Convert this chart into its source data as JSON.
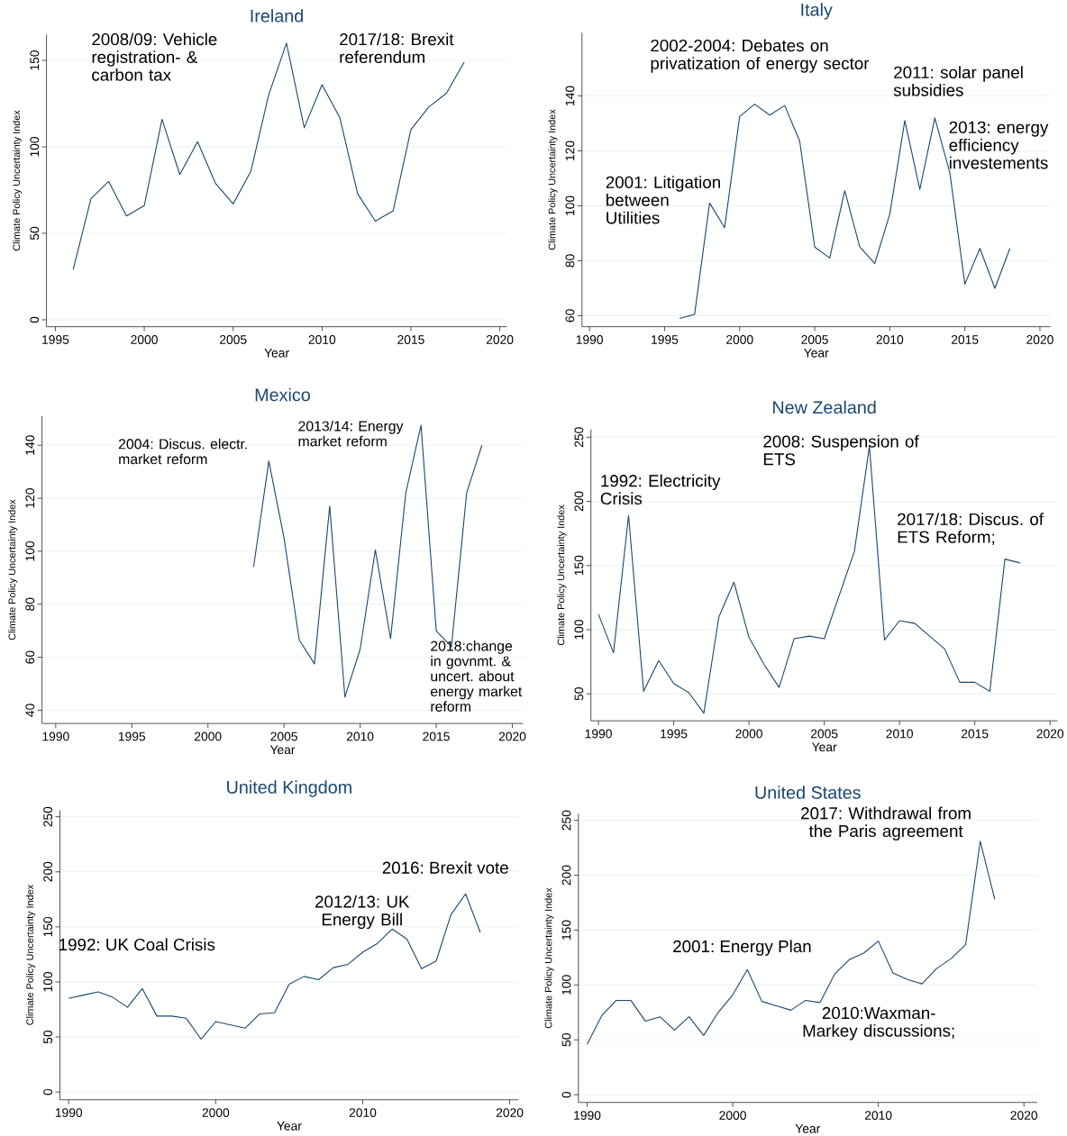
{
  "chart_data": [
    {
      "type": "line",
      "title": "Ireland",
      "xlabel": "Year",
      "ylabel": "Climate Policy Uncertainty Index",
      "color": "#1a476f",
      "grid": "y",
      "x": [
        1996,
        1997,
        1998,
        1999,
        2000,
        2001,
        2002,
        2003,
        2004,
        2005,
        2006,
        2007,
        2008,
        2009,
        2010,
        2011,
        2012,
        2013,
        2014,
        2015,
        2016,
        2017,
        2018
      ],
      "values": [
        29,
        70,
        80,
        60,
        66,
        116,
        84,
        103,
        79,
        67,
        86,
        130,
        160,
        111,
        136,
        117,
        73,
        57,
        63,
        110,
        123,
        131,
        149
      ],
      "xlim": [
        1994.5,
        2020.4
      ],
      "xticks": [
        1995,
        2000,
        2005,
        2010,
        2015,
        2020
      ],
      "ylim": [
        -4,
        165
      ],
      "yticks": [
        0,
        50,
        100,
        150
      ],
      "annotations": [
        "2008/09: Vehicle registration- & carbon tax",
        "2017/18: Brexit referendum"
      ]
    },
    {
      "type": "line",
      "title": "Italy",
      "xlabel": "Year",
      "ylabel": "Climate Policy Uncertainty Index",
      "color": "#1a476f",
      "grid": "y",
      "x": [
        1996,
        1997,
        1998,
        1999,
        2000,
        2001,
        2002,
        2003,
        2004,
        2005,
        2006,
        2007,
        2008,
        2009,
        2010,
        2011,
        2012,
        2013,
        2014,
        2015,
        2016,
        2017,
        2018
      ],
      "values": [
        59,
        60.5,
        101,
        92,
        132.5,
        137,
        133,
        136.5,
        123.5,
        85,
        81,
        105.5,
        85,
        79,
        97,
        131,
        106,
        132,
        112,
        71.5,
        84.5,
        70,
        84.5
      ],
      "xlim": [
        1989.5,
        2020.7
      ],
      "xticks": [
        1990,
        1995,
        2000,
        2005,
        2010,
        2015,
        2020
      ],
      "ylim": [
        56,
        163
      ],
      "yticks": [
        60,
        80,
        100,
        120,
        140
      ],
      "annotations": [
        "2002-2004: Debates on privatization of energy sector",
        "2011: solar panel subsidies",
        "2013: energy efficiency investements",
        "2001: Litigation between Utilities"
      ]
    },
    {
      "type": "line",
      "title": "Mexico",
      "xlabel": "Year",
      "ylabel": "Climate Policy Uncertainty Index",
      "color": "#1a476f",
      "grid": "y",
      "x": [
        2003,
        2004,
        2005,
        2006,
        2007,
        2008,
        2009,
        2010,
        2011,
        2012,
        2013,
        2014,
        2015,
        2016,
        2017,
        2018
      ],
      "values": [
        94,
        134,
        105,
        66.5,
        57.5,
        117,
        45,
        63,
        100.5,
        67,
        122,
        147.5,
        70,
        64,
        122,
        140
      ],
      "xlim": [
        1989.1,
        2020.7
      ],
      "xticks": [
        1990,
        1995,
        2000,
        2005,
        2010,
        2015,
        2020
      ],
      "ylim": [
        35,
        151
      ],
      "yticks": [
        40,
        60,
        80,
        100,
        120,
        140
      ],
      "annotations": [
        "2004: Discus. electr. market reform",
        "2013/14: Energy market reform",
        "2018:change in govnmt. & uncert. about energy market reform"
      ]
    },
    {
      "type": "line",
      "title": "New Zealand",
      "xlabel": "Year",
      "ylabel": "Climate Policy Uncertainty Index",
      "color": "#1a476f",
      "grid": "y",
      "x": [
        1990,
        1991,
        1992,
        1993,
        1994,
        1995,
        1996,
        1997,
        1998,
        1999,
        2000,
        2001,
        2002,
        2003,
        2004,
        2005,
        2006,
        2007,
        2008,
        2009,
        2010,
        2011,
        2012,
        2013,
        2014,
        2015,
        2016,
        2017,
        2018
      ],
      "values": [
        112,
        82,
        189,
        52,
        76,
        58,
        51,
        35,
        110,
        137,
        94,
        73,
        55,
        93,
        95,
        93,
        127,
        161,
        243,
        92,
        107,
        105,
        95,
        85,
        59,
        59,
        52,
        155,
        152
      ],
      "xlim": [
        1989.5,
        2020.5
      ],
      "xticks": [
        1990,
        1995,
        2000,
        2005,
        2010,
        2015,
        2020
      ],
      "ylim": [
        29,
        256
      ],
      "yticks": [
        50,
        100,
        150,
        200,
        250
      ],
      "annotations": [
        "1992: Electricity Crisis",
        "2008: Suspension of ETS",
        "2017/18: Discus. of ETS Reform;"
      ]
    },
    {
      "type": "line",
      "title": "United Kingdom",
      "xlabel": "Year",
      "ylabel": "Climate Policy Uncertainty Index",
      "color": "#1a476f",
      "grid": "y",
      "x": [
        1990,
        1991,
        1992,
        1993,
        1994,
        1995,
        1996,
        1997,
        1998,
        1999,
        2000,
        2001,
        2002,
        2003,
        2004,
        2005,
        2006,
        2007,
        2008,
        2009,
        2010,
        2011,
        2012,
        2013,
        2014,
        2015,
        2016,
        2017,
        2018
      ],
      "values": [
        85,
        88,
        91,
        86,
        77,
        94,
        69,
        69,
        67,
        48,
        64,
        61,
        58,
        71,
        72,
        98,
        105,
        102,
        113,
        116,
        127,
        135,
        148,
        139,
        112,
        119,
        161,
        180,
        145
      ],
      "xlim": [
        1989.4,
        2020.6
      ],
      "xticks": [
        1990,
        2000,
        2010,
        2020
      ],
      "ylim": [
        -7,
        256
      ],
      "yticks": [
        0,
        50,
        100,
        150,
        200,
        250
      ],
      "annotations": [
        "2016: Brexit vote",
        "2012/13: UK Energy Bill",
        "1992: UK Coal Crisis"
      ]
    },
    {
      "type": "line",
      "title": "United States",
      "xlabel": "Year",
      "ylabel": "Climate Policy Uncertainty Index",
      "color": "#1a476f",
      "grid": "y",
      "x": [
        1990,
        1991,
        1992,
        1993,
        1994,
        1995,
        1996,
        1997,
        1998,
        1999,
        2000,
        2001,
        2002,
        2003,
        2004,
        2005,
        2006,
        2007,
        2008,
        2009,
        2010,
        2011,
        2012,
        2013,
        2014,
        2015,
        2016,
        2017,
        2018
      ],
      "values": [
        46,
        72,
        86,
        86,
        67,
        71,
        59,
        71,
        54,
        75,
        91,
        114,
        85,
        81,
        77,
        86,
        84,
        110,
        123,
        129,
        140,
        111,
        105,
        101,
        115,
        124,
        137,
        231,
        178
      ],
      "xlim": [
        1989.4,
        2020.9
      ],
      "xticks": [
        1990,
        2000,
        2010,
        2020
      ],
      "ylim": [
        -7,
        256
      ],
      "yticks": [
        0,
        50,
        100,
        150,
        200,
        250
      ],
      "annotations": [
        "2017: Withdrawal from the Paris agreement",
        "2001: Energy Plan",
        "2010:Waxman-Markey discussions;"
      ]
    }
  ]
}
